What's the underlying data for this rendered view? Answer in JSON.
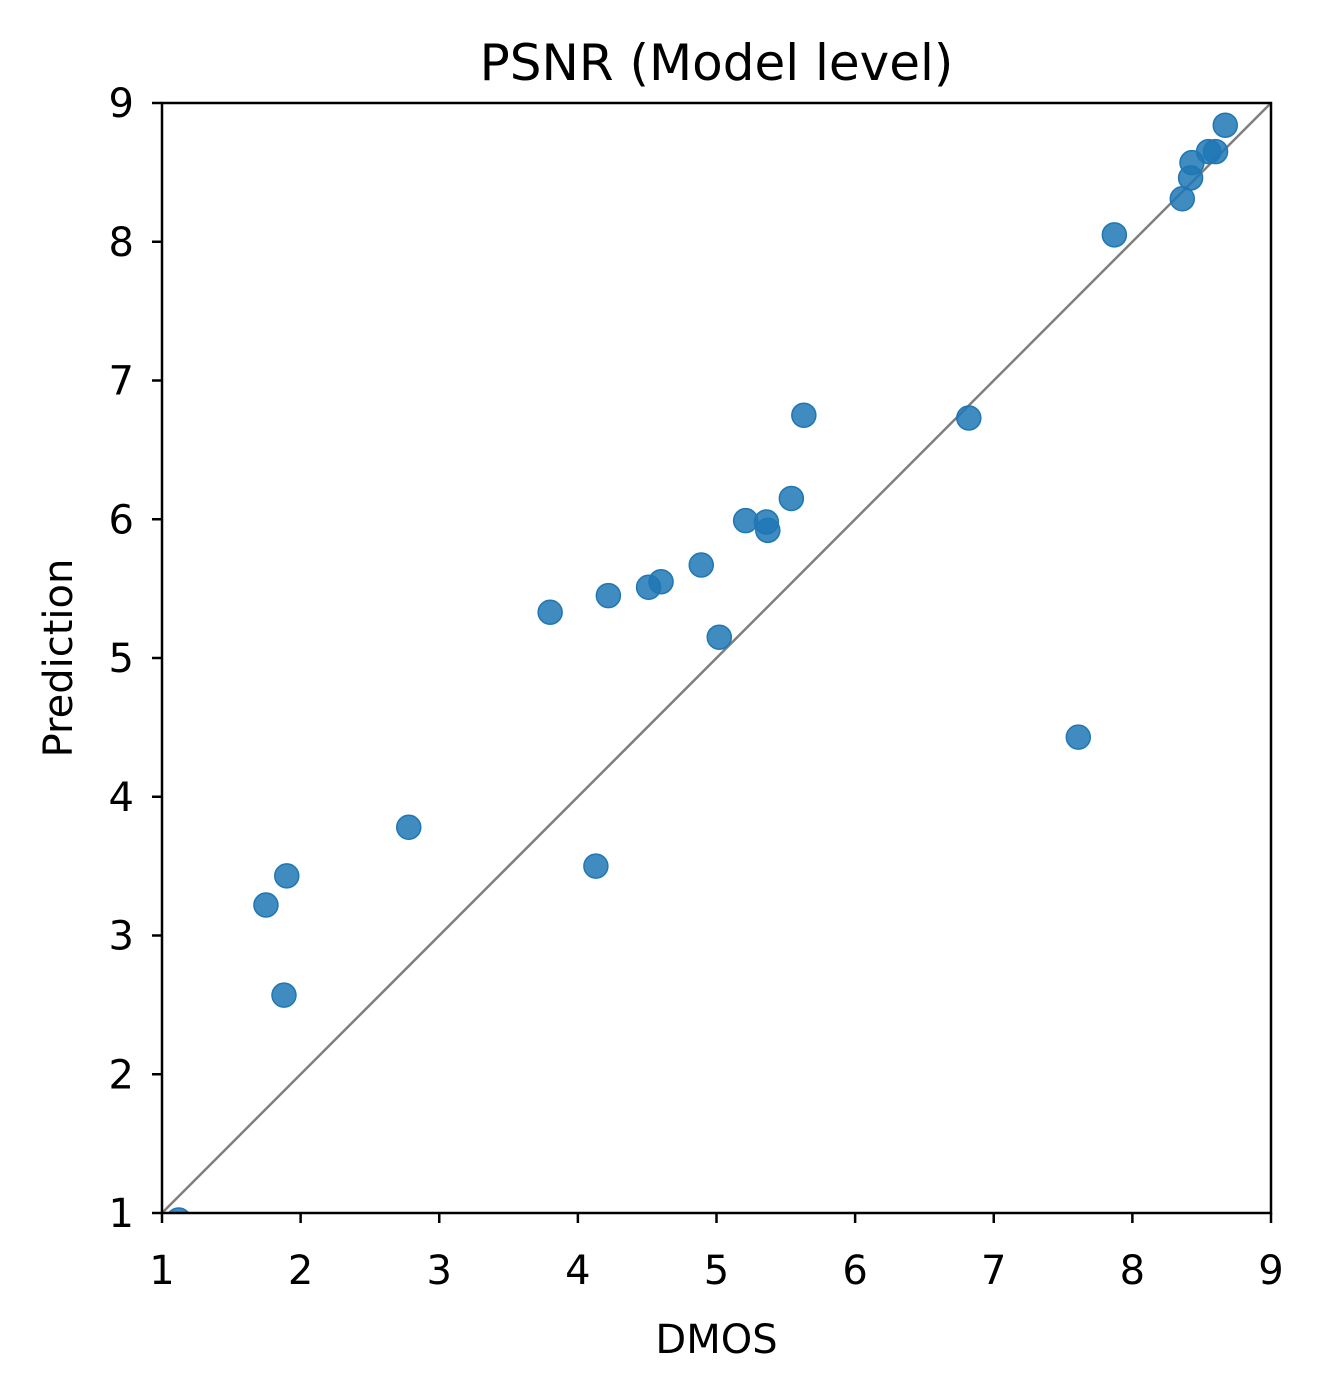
{
  "chart_data": {
    "type": "scatter",
    "title": "PSNR (Model level)",
    "xlabel": "DMOS",
    "ylabel": "Prediction",
    "xlim": [
      1,
      9
    ],
    "ylim": [
      1,
      9
    ],
    "xticks": [
      "1",
      "2",
      "3",
      "4",
      "5",
      "6",
      "7",
      "8",
      "9"
    ],
    "yticks": [
      "1",
      "2",
      "3",
      "4",
      "5",
      "6",
      "7",
      "8",
      "9"
    ],
    "grid": false,
    "reference_line": "y = x",
    "colors": {
      "points": "#1f77b4",
      "reference_line": "#7f7f7f"
    },
    "points": [
      {
        "x": 1.12,
        "y": 0.95
      },
      {
        "x": 1.75,
        "y": 3.22
      },
      {
        "x": 1.9,
        "y": 3.43
      },
      {
        "x": 1.88,
        "y": 2.57
      },
      {
        "x": 2.78,
        "y": 3.78
      },
      {
        "x": 3.8,
        "y": 5.33
      },
      {
        "x": 4.13,
        "y": 3.5
      },
      {
        "x": 4.22,
        "y": 5.45
      },
      {
        "x": 4.51,
        "y": 5.51
      },
      {
        "x": 4.6,
        "y": 5.55
      },
      {
        "x": 4.89,
        "y": 5.67
      },
      {
        "x": 5.02,
        "y": 5.15
      },
      {
        "x": 5.21,
        "y": 5.99
      },
      {
        "x": 5.36,
        "y": 5.98
      },
      {
        "x": 5.37,
        "y": 5.92
      },
      {
        "x": 5.54,
        "y": 6.15
      },
      {
        "x": 5.63,
        "y": 6.75
      },
      {
        "x": 6.82,
        "y": 6.73
      },
      {
        "x": 7.61,
        "y": 4.43
      },
      {
        "x": 7.87,
        "y": 8.05
      },
      {
        "x": 8.36,
        "y": 8.31
      },
      {
        "x": 8.42,
        "y": 8.46
      },
      {
        "x": 8.43,
        "y": 8.57
      },
      {
        "x": 8.55,
        "y": 8.65
      },
      {
        "x": 8.6,
        "y": 8.65
      },
      {
        "x": 8.67,
        "y": 8.84
      }
    ]
  }
}
